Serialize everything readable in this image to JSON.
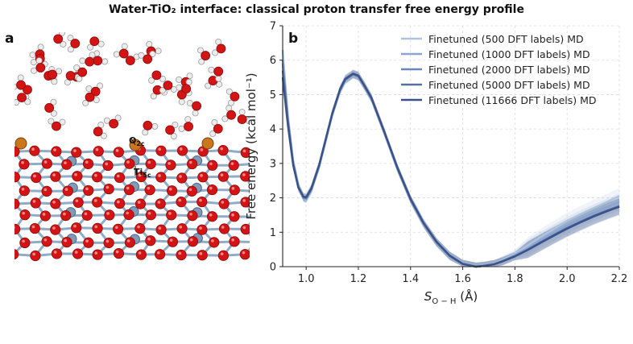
{
  "figure": {
    "title": "Water-TiO₂ interface: classical proton transfer free energy profile",
    "panel_a_label": "a",
    "panel_b_label": "b",
    "atom_labels": [
      "O₂c",
      "Ti₅c"
    ]
  },
  "colors": {
    "oxygen": "#d41414",
    "titanium": "#8eacc8",
    "hydrogen": "#ececec",
    "highlight_o": "#c9761c",
    "series": [
      "#aec4de",
      "#8aa5cf",
      "#6e87b8",
      "#55709f",
      "#3a5287"
    ]
  },
  "chart_data": {
    "type": "line",
    "xlabel": "S_{O−H} (Å)",
    "xlabel_main": "S",
    "xlabel_sub": "O − H",
    "xlabel_unit": "(Å)",
    "ylabel": "Free energy (kcal mol⁻¹)",
    "xlim": [
      0.91,
      2.2
    ],
    "ylim": [
      0,
      7
    ],
    "xticks": [
      1.0,
      1.2,
      1.4,
      1.6,
      1.8,
      2.0,
      2.2
    ],
    "xtick_labels": [
      "1.0",
      "1.2",
      "1.4",
      "1.6",
      "1.8",
      "2.0",
      "2.2"
    ],
    "yticks": [
      0,
      1,
      2,
      3,
      4,
      5,
      6,
      7
    ],
    "ytick_labels": [
      "0",
      "1",
      "2",
      "3",
      "4",
      "5",
      "6",
      "7"
    ],
    "grid": true,
    "legend_position": "top-right",
    "x": [
      0.91,
      0.93,
      0.95,
      0.97,
      0.99,
      1.0,
      1.02,
      1.05,
      1.08,
      1.1,
      1.13,
      1.15,
      1.18,
      1.2,
      1.22,
      1.25,
      1.3,
      1.35,
      1.4,
      1.45,
      1.5,
      1.55,
      1.6,
      1.65,
      1.68,
      1.72,
      1.75,
      1.8,
      1.85,
      1.9,
      1.95,
      2.0,
      2.05,
      2.1,
      2.15,
      2.2
    ],
    "series": [
      {
        "name": "Finetuned (500 DFT labels) MD",
        "values": [
          6.3,
          4.4,
          3.1,
          2.4,
          2.0,
          1.95,
          2.2,
          2.9,
          3.8,
          4.4,
          5.1,
          5.4,
          5.6,
          5.55,
          5.3,
          4.9,
          3.9,
          2.85,
          1.95,
          1.25,
          0.7,
          0.32,
          0.08,
          0.0,
          0.02,
          0.08,
          0.18,
          0.38,
          0.62,
          0.87,
          1.1,
          1.33,
          1.52,
          1.7,
          1.87,
          2.05
        ]
      },
      {
        "name": "Finetuned (1000 DFT labels) MD",
        "values": [
          6.0,
          4.3,
          3.05,
          2.35,
          2.0,
          1.97,
          2.23,
          2.92,
          3.82,
          4.42,
          5.12,
          5.42,
          5.58,
          5.52,
          5.28,
          4.88,
          3.88,
          2.84,
          1.94,
          1.24,
          0.69,
          0.31,
          0.08,
          0.0,
          0.02,
          0.07,
          0.16,
          0.34,
          0.55,
          0.78,
          0.99,
          1.2,
          1.39,
          1.56,
          1.72,
          1.88
        ]
      },
      {
        "name": "Finetuned (2000 DFT labels) MD",
        "values": [
          5.9,
          4.25,
          3.0,
          2.33,
          2.0,
          1.98,
          2.24,
          2.93,
          3.83,
          4.43,
          5.13,
          5.43,
          5.59,
          5.53,
          5.29,
          4.89,
          3.89,
          2.85,
          1.95,
          1.25,
          0.7,
          0.31,
          0.08,
          0.0,
          0.02,
          0.07,
          0.15,
          0.31,
          0.5,
          0.72,
          0.93,
          1.13,
          1.31,
          1.48,
          1.63,
          1.77
        ]
      },
      {
        "name": "Finetuned (5000 DFT labels) MD",
        "values": [
          5.7,
          4.2,
          2.98,
          2.32,
          2.02,
          2.0,
          2.26,
          2.95,
          3.85,
          4.45,
          5.15,
          5.45,
          5.6,
          5.54,
          5.3,
          4.9,
          3.9,
          2.86,
          1.96,
          1.26,
          0.71,
          0.32,
          0.08,
          0.0,
          0.02,
          0.07,
          0.15,
          0.3,
          0.49,
          0.7,
          0.9,
          1.1,
          1.28,
          1.45,
          1.6,
          1.75
        ]
      },
      {
        "name": "Finetuned (11666 DFT labels) MD",
        "values": [
          5.5,
          4.1,
          2.95,
          2.3,
          2.03,
          2.02,
          2.28,
          2.97,
          3.86,
          4.46,
          5.16,
          5.46,
          5.61,
          5.55,
          5.31,
          4.91,
          3.91,
          2.87,
          1.97,
          1.27,
          0.72,
          0.32,
          0.08,
          0.0,
          0.02,
          0.07,
          0.15,
          0.3,
          0.49,
          0.7,
          0.91,
          1.11,
          1.29,
          1.46,
          1.61,
          1.74
        ]
      }
    ]
  }
}
